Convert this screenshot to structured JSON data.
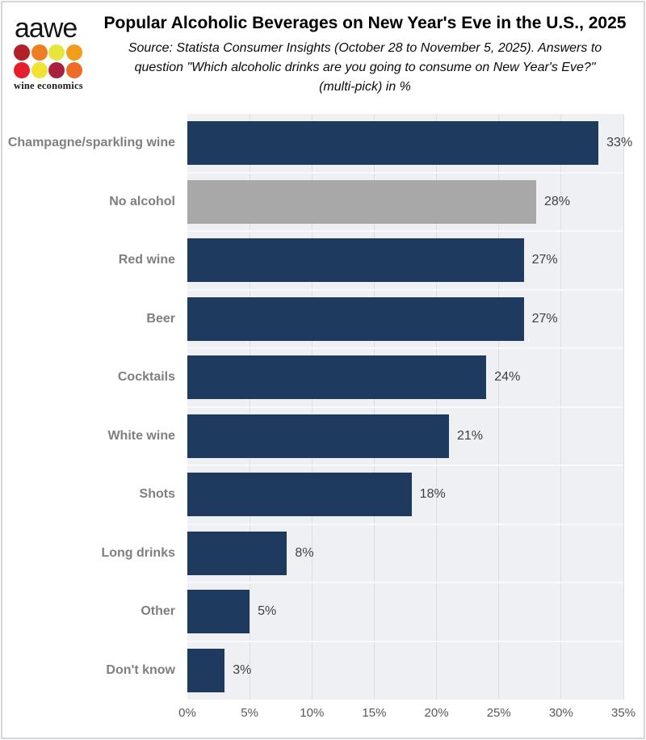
{
  "header": {
    "logo": {
      "brand": "aawe",
      "tagline": "wine economics",
      "dot_colors": [
        "#b22028",
        "#ee7e23",
        "#e6e53e",
        "#f29d1c",
        "#e5202c",
        "#f3e233",
        "#a82040",
        "#ef6b28"
      ]
    },
    "title": "Popular Alcoholic Beverages on New Year's Eve in the U.S., 2025",
    "subtitle_lines": [
      "Source: Statista Consumer Insights (October 28 to November 5, 2025). Answers to",
      "question \"Which alcoholic drinks are you going to consume on New Year's Eve?\"",
      "(multi-pick) in %"
    ]
  },
  "chart_data": {
    "type": "bar",
    "orientation": "horizontal",
    "title": "Popular Alcoholic Beverages on New Year's Eve in the U.S., 2025",
    "categories": [
      "Champagne/sparkling wine",
      "No alcohol",
      "Red wine",
      "Beer",
      "Cocktails",
      "White wine",
      "Shots",
      "Long drinks",
      "Other",
      "Don't know"
    ],
    "values": [
      33,
      28,
      27,
      27,
      24,
      21,
      18,
      8,
      5,
      3
    ],
    "value_labels": [
      "33%",
      "28%",
      "27%",
      "27%",
      "24%",
      "21%",
      "18%",
      "8%",
      "5%",
      "3%"
    ],
    "bar_colors": [
      "#1e3a5e",
      "#a8a8a8",
      "#1e3a5e",
      "#1e3a5e",
      "#1e3a5e",
      "#1e3a5e",
      "#1e3a5e",
      "#1e3a5e",
      "#1e3a5e",
      "#1e3a5e"
    ],
    "x_ticks": [
      "0%",
      "5%",
      "10%",
      "15%",
      "20%",
      "25%",
      "30%",
      "35%"
    ],
    "x_tick_values": [
      0,
      5,
      10,
      15,
      20,
      25,
      30,
      35
    ],
    "xlim": [
      0,
      35
    ],
    "xlabel": "",
    "ylabel": "",
    "grid": true,
    "legend": false,
    "plot_background": "#eef0f3"
  }
}
